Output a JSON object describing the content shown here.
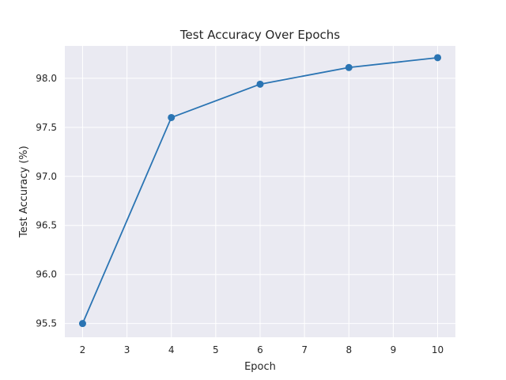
{
  "chart_data": {
    "type": "line",
    "title": "Test Accuracy Over Epochs",
    "xlabel": "Epoch",
    "ylabel": "Test Accuracy (%)",
    "x": [
      2,
      4,
      6,
      8,
      10
    ],
    "series": [
      {
        "values": [
          95.5,
          97.6,
          97.94,
          98.11,
          98.21
        ],
        "color": "#2a74b3",
        "marker": "circle"
      }
    ],
    "xlim": [
      1.6,
      10.4
    ],
    "ylim": [
      95.36,
      98.33
    ],
    "xticks": [
      2,
      3,
      4,
      5,
      6,
      7,
      8,
      9,
      10
    ],
    "xtick_labels": [
      "2",
      "3",
      "4",
      "5",
      "6",
      "7",
      "8",
      "9",
      "10"
    ],
    "yticks": [
      95.5,
      96.0,
      96.5,
      97.0,
      97.5,
      98.0
    ],
    "ytick_labels": [
      "95.5",
      "96.0",
      "96.5",
      "97.0",
      "97.5",
      "98.0"
    ],
    "grid": true,
    "legend": false,
    "plot_background": "#eaeaf2",
    "grid_color": "#ffffff"
  }
}
